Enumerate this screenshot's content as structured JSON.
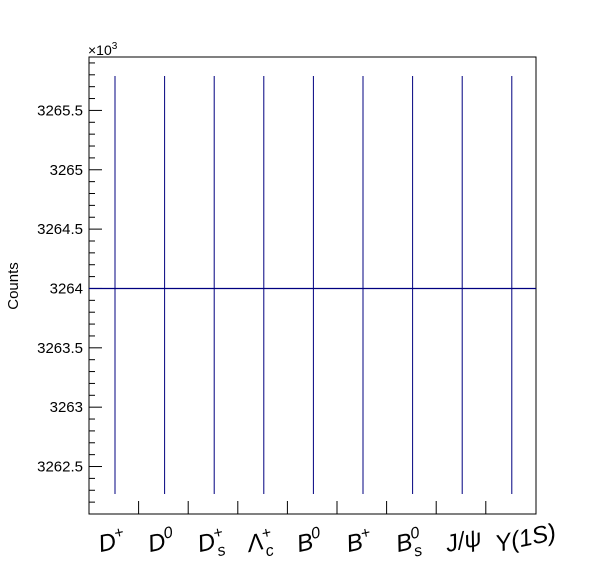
{
  "chart_data": {
    "type": "bar",
    "title": "",
    "xlabel": "",
    "ylabel": "Counts",
    "y_multiplier_label": "×10",
    "y_multiplier_exponent": "3",
    "ylim": [
      3262.1,
      3265.95
    ],
    "y_ticks": [
      3262.5,
      3263,
      3263.5,
      3264,
      3264.5,
      3265,
      3265.5
    ],
    "y_tick_labels": [
      "3262.5",
      "3263",
      "3263.5",
      "3264",
      "3264.5",
      "3265",
      "3265.5"
    ],
    "categories": [
      "D+",
      "D0",
      "Ds+",
      "Λc+",
      "B0",
      "B+",
      "Bs0",
      "J/ψ",
      "Υ(1S)"
    ],
    "values": [
      3264,
      3264,
      3264,
      3264,
      3264,
      3264,
      3264,
      3264,
      3264
    ],
    "line_color": "#000080",
    "grid": false,
    "legend": "none"
  }
}
